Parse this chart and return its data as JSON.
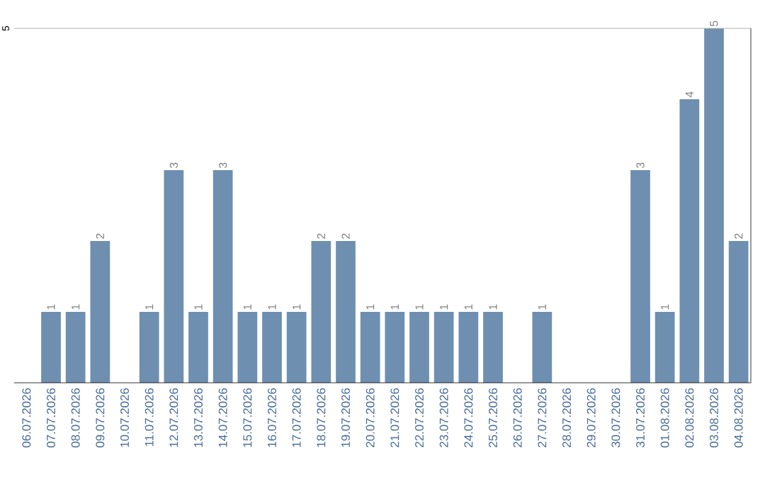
{
  "chart_data": {
    "type": "bar",
    "categories": [
      "06.07.2026",
      "07.07.2026",
      "08.07.2026",
      "09.07.2026",
      "10.07.2026",
      "11.07.2026",
      "12.07.2026",
      "13.07.2026",
      "14.07.2026",
      "15.07.2026",
      "16.07.2026",
      "17.07.2026",
      "18.07.2026",
      "19.07.2026",
      "20.07.2026",
      "21.07.2026",
      "22.07.2026",
      "23.07.2026",
      "24.07.2026",
      "25.07.2026",
      "26.07.2026",
      "27.07.2026",
      "28.07.2026",
      "29.07.2026",
      "30.07.2026",
      "31.07.2026",
      "01.08.2026",
      "02.08.2026",
      "03.08.2026",
      "04.08.2026"
    ],
    "values": [
      0,
      1,
      1,
      2,
      0,
      1,
      3,
      1,
      3,
      1,
      1,
      1,
      2,
      2,
      1,
      1,
      1,
      1,
      1,
      1,
      0,
      1,
      0,
      0,
      0,
      3,
      1,
      4,
      5,
      2
    ],
    "value_labels": [
      null,
      "1",
      "1",
      "2",
      null,
      "1",
      "3",
      "1",
      "3",
      "1",
      "1",
      "1",
      "2",
      "2",
      "1",
      "1",
      "1",
      "1",
      "1",
      "1",
      null,
      "1",
      null,
      null,
      null,
      "3",
      "1",
      "4",
      "5",
      "2"
    ],
    "color": "#6e8fb0",
    "ylim": [
      0,
      5
    ],
    "yticks": [
      5
    ]
  }
}
